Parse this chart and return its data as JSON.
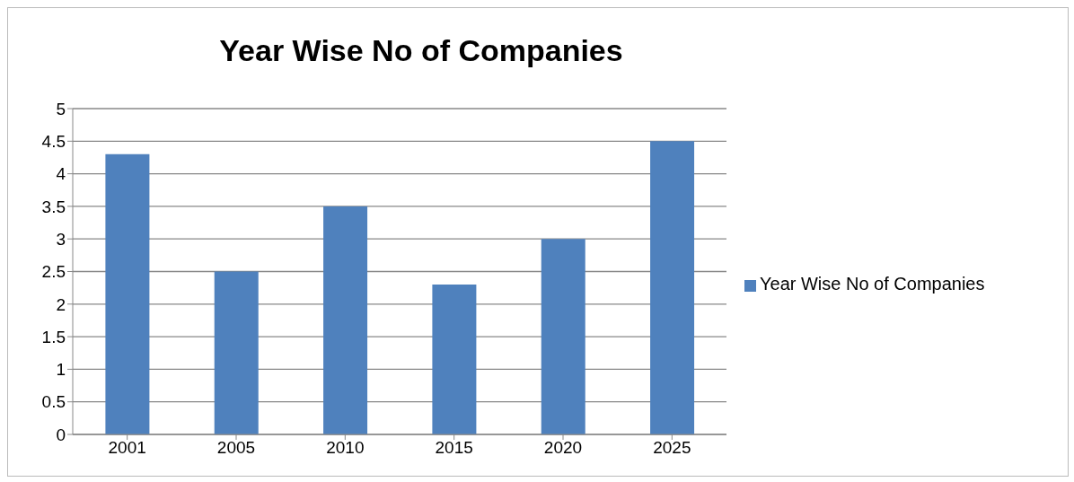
{
  "chart_data": {
    "type": "bar",
    "title": "Year Wise No of Companies",
    "categories": [
      "2001",
      "2005",
      "2010",
      "2015",
      "2020",
      "2025"
    ],
    "series": [
      {
        "name": "Year Wise No of Companies",
        "color": "#4f81bd",
        "values": [
          4.3,
          2.5,
          3.5,
          2.3,
          3.0,
          4.5
        ]
      }
    ],
    "ylim": [
      0,
      5
    ],
    "yticks": [
      0,
      0.5,
      1,
      1.5,
      2,
      2.5,
      3,
      3.5,
      4,
      4.5,
      5
    ],
    "grid": "y",
    "legend": "right"
  }
}
